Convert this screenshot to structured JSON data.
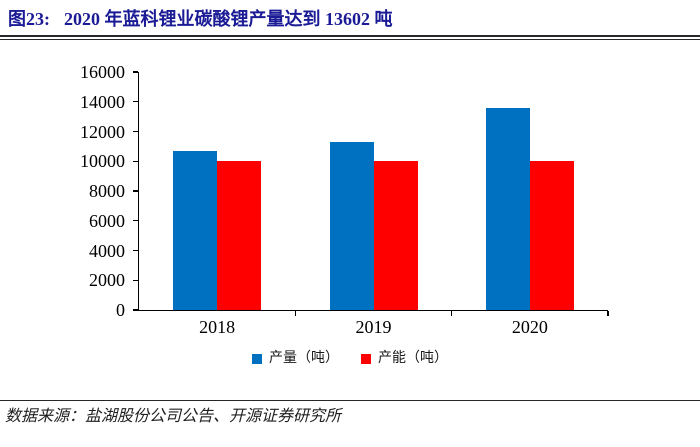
{
  "header": {
    "label": "图23:",
    "title": "2020 年蓝科锂业碳酸锂产量达到 13602 吨",
    "title_color": "#1b1b96"
  },
  "chart_data": {
    "type": "bar",
    "categories": [
      "2018",
      "2019",
      "2020"
    ],
    "series": [
      {
        "name": "产量（吨）",
        "color": "#0070c0",
        "values": [
          10700,
          11300,
          13602
        ]
      },
      {
        "name": "产能（吨）",
        "color": "#ff0000",
        "values": [
          10000,
          10000,
          10000
        ]
      }
    ],
    "title": "",
    "xlabel": "",
    "ylabel": "",
    "ylim": [
      0,
      16000
    ],
    "yticks": [
      0,
      2000,
      4000,
      6000,
      8000,
      10000,
      12000,
      14000,
      16000
    ],
    "grid": false,
    "legend_position": "bottom",
    "axis_color": "#000000"
  },
  "footer": {
    "source": "数据来源：盐湖股份公司公告、开源证券研究所"
  }
}
